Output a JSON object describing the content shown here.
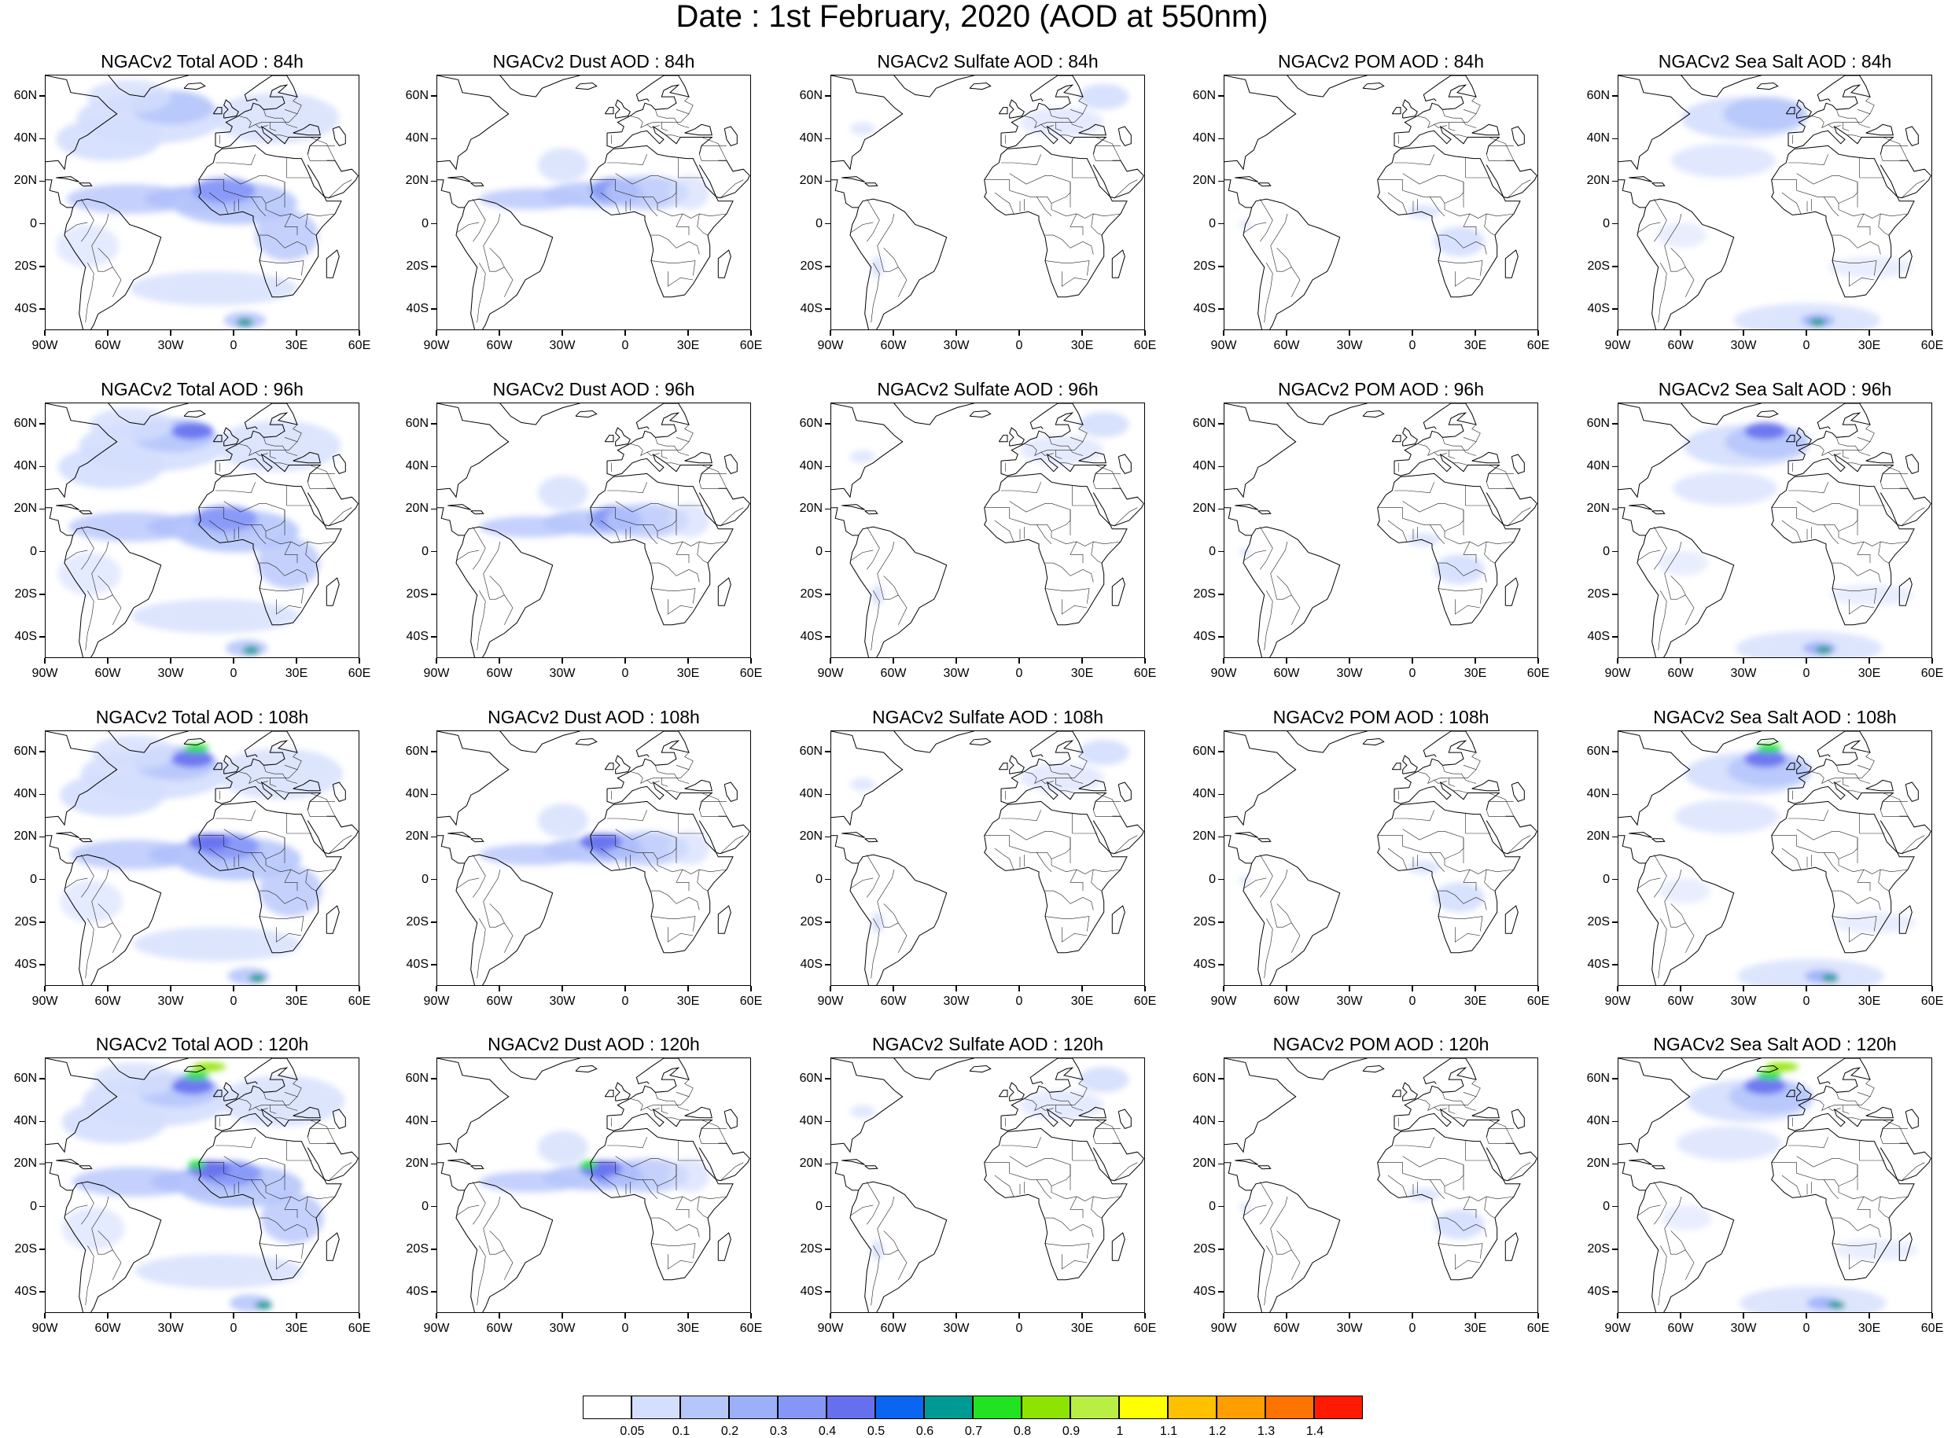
{
  "title": "Date : 1st February, 2020 (AOD at 550nm)",
  "axes": {
    "lat_labels": [
      "60N",
      "40N",
      "20N",
      "0",
      "20S",
      "40S"
    ],
    "lon_labels": [
      "90W",
      "60W",
      "30W",
      "0",
      "30E",
      "60E"
    ],
    "lat_values": [
      60,
      40,
      20,
      0,
      -20,
      -40
    ],
    "lon_values": [
      -90,
      -60,
      -30,
      0,
      30,
      60
    ],
    "lon_range": [
      -90,
      60
    ],
    "lat_range": [
      -50,
      70
    ]
  },
  "rows": [
    {
      "forecast_hour": "84h",
      "panels": [
        {
          "title": "NGACv2 Total AOD : 84h",
          "species": "total"
        },
        {
          "title": "NGACv2 Dust AOD : 84h",
          "species": "dust"
        },
        {
          "title": "NGACv2 Sulfate AOD : 84h",
          "species": "sulfate"
        },
        {
          "title": "NGACv2 POM AOD : 84h",
          "species": "pom"
        },
        {
          "title": "NGACv2 Sea Salt AOD : 84h",
          "species": "seasalt"
        }
      ]
    },
    {
      "forecast_hour": "96h",
      "panels": [
        {
          "title": "NGACv2 Total AOD : 96h",
          "species": "total"
        },
        {
          "title": "NGACv2 Dust AOD : 96h",
          "species": "dust"
        },
        {
          "title": "NGACv2 Sulfate AOD : 96h",
          "species": "sulfate"
        },
        {
          "title": "NGACv2 POM AOD : 96h",
          "species": "pom"
        },
        {
          "title": "NGACv2 Sea Salt AOD : 96h",
          "species": "seasalt"
        }
      ]
    },
    {
      "forecast_hour": "108h",
      "panels": [
        {
          "title": "NGACv2 Total AOD : 108h",
          "species": "total"
        },
        {
          "title": "NGACv2 Dust AOD : 108h",
          "species": "dust"
        },
        {
          "title": "NGACv2 Sulfate AOD : 108h",
          "species": "sulfate"
        },
        {
          "title": "NGACv2 POM AOD : 108h",
          "species": "pom"
        },
        {
          "title": "NGACv2 Sea Salt AOD : 108h",
          "species": "seasalt"
        }
      ]
    },
    {
      "forecast_hour": "120h",
      "panels": [
        {
          "title": "NGACv2 Total AOD : 120h",
          "species": "total"
        },
        {
          "title": "NGACv2 Dust AOD : 120h",
          "species": "dust"
        },
        {
          "title": "NGACv2 Sulfate AOD : 120h",
          "species": "sulfate"
        },
        {
          "title": "NGACv2 POM AOD : 120h",
          "species": "pom"
        },
        {
          "title": "NGACv2 Sea Salt  AOD : 120h",
          "species": "seasalt"
        }
      ]
    }
  ],
  "colorbar": {
    "labels": [
      "0.05",
      "0.1",
      "0.2",
      "0.3",
      "0.4",
      "0.5",
      "0.6",
      "0.7",
      "0.8",
      "0.9",
      "1",
      "1.1",
      "1.2",
      "1.3",
      "1.4"
    ],
    "colors": [
      "#ffffff",
      "#d4defd",
      "#b6c6fb",
      "#9cb0f9",
      "#8596f7",
      "#6670ee",
      "#0a66f0",
      "#009a94",
      "#22e322",
      "#8de400",
      "#b9ef45",
      "#ffff00",
      "#ffc000",
      "#ff9e00",
      "#ff7400",
      "#ff1a00"
    ]
  }
}
